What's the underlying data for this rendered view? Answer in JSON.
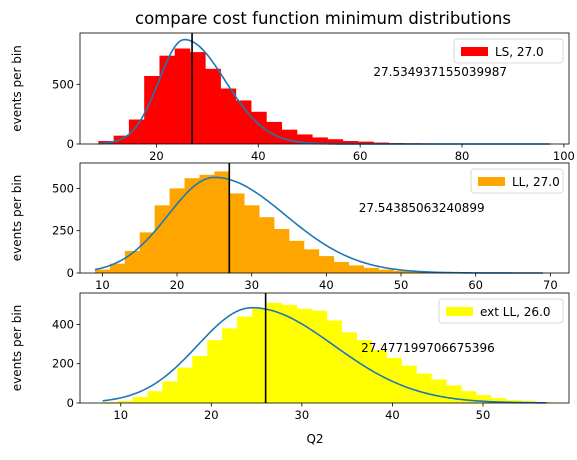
{
  "chart_data": {
    "title": "compare cost function minimum distributions",
    "xlabel": "Q2",
    "panels": [
      {
        "type": "bar",
        "ylabel": "events per bin",
        "legend_label": "LS, 27.0",
        "legend_loc": "upper right",
        "annotation": "27.534937155039987",
        "color": "#ff0000",
        "xlim": [
          5,
          101
        ],
        "ylim": [
          0,
          930
        ],
        "xticks": [
          20,
          40,
          60,
          80,
          100
        ],
        "yticks": [
          0,
          500
        ],
        "bin_start": 8.6,
        "bin_width": 3.0,
        "counts": [
          25,
          70,
          205,
          570,
          740,
          800,
          770,
          630,
          465,
          365,
          270,
          185,
          120,
          80,
          55,
          40,
          25,
          20,
          12,
          8,
          6,
          5,
          4,
          3,
          3,
          2,
          2,
          2,
          1,
          1
        ],
        "vline": 27.0,
        "curve": {
          "type": "lognormal-like",
          "peak_x": 25.5,
          "peak_y": 875,
          "sigma_left": 5.0,
          "sigma_right": 8.0,
          "x_start": 8.6,
          "x_end": 97.3
        }
      },
      {
        "type": "bar",
        "ylabel": "events per bin",
        "legend_label": "LL, 27.0",
        "legend_loc": "upper right",
        "annotation": "27.54385063240899",
        "color": "#ffa500",
        "xlim": [
          7,
          72.5
        ],
        "ylim": [
          0,
          650
        ],
        "xticks": [
          10,
          20,
          30,
          40,
          50,
          60,
          70
        ],
        "yticks": [
          0,
          250,
          500
        ],
        "bin_start": 9.0,
        "bin_width": 2.0,
        "counts": [
          20,
          55,
          130,
          240,
          400,
          500,
          560,
          580,
          600,
          470,
          400,
          330,
          260,
          190,
          140,
          100,
          65,
          45,
          30,
          20,
          12,
          8,
          5,
          4,
          3,
          2,
          2,
          1,
          1,
          1
        ],
        "vline": 27.0,
        "curve": {
          "type": "lognormal-like",
          "peak_x": 25.0,
          "peak_y": 565,
          "sigma_left": 6.2,
          "sigma_right": 9.5,
          "x_start": 9.0,
          "x_end": 69.0
        }
      },
      {
        "type": "bar",
        "ylabel": "events per bin",
        "legend_label": "ext LL, 26.0",
        "legend_loc": "upper right",
        "annotation": "27.477199706675396",
        "color": "#ffff00",
        "xlim": [
          5.5,
          59.5
        ],
        "ylim": [
          0,
          560
        ],
        "xticks": [
          10,
          20,
          30,
          40,
          50
        ],
        "yticks": [
          0,
          200,
          400
        ],
        "bin_start": 8.0,
        "bin_width": 1.65,
        "counts": [
          5,
          10,
          30,
          60,
          110,
          180,
          240,
          320,
          380,
          440,
          480,
          510,
          500,
          480,
          470,
          420,
          360,
          320,
          270,
          230,
          190,
          150,
          120,
          90,
          60,
          40,
          25,
          15,
          10,
          5
        ],
        "vline": 26.0,
        "curve": {
          "type": "lognormal-like",
          "peak_x": 24.5,
          "peak_y": 485,
          "sigma_left": 6.0,
          "sigma_right": 9.0,
          "x_start": 8.0,
          "x_end": 57.0
        }
      }
    ]
  }
}
